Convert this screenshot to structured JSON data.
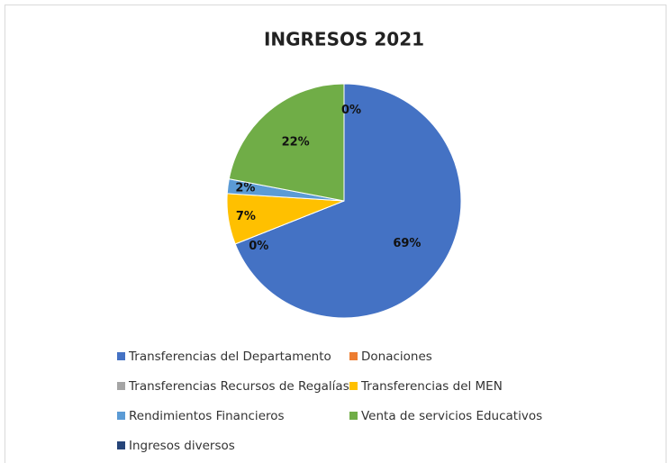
{
  "chart_data": {
    "type": "pie",
    "title": "INGRESOS 2021",
    "categories": [
      "Transferencias del Departamento",
      "Donaciones",
      "Transferencias Recursos de Regalías",
      "Transferencias del MEN",
      "Rendimientos Financieros",
      "Venta de servicios Educativos",
      "Ingresos diversos"
    ],
    "values": [
      69,
      0,
      0,
      7,
      2,
      22,
      0
    ],
    "value_labels": [
      "69%",
      "0%",
      null,
      "7%",
      "2%",
      "22%",
      "0%"
    ],
    "colors": [
      "#4472c4",
      "#ed7d31",
      "#a5a5a5",
      "#ffc000",
      "#5b9bd5",
      "#70ad47",
      "#264478"
    ],
    "legend": "bottom"
  }
}
